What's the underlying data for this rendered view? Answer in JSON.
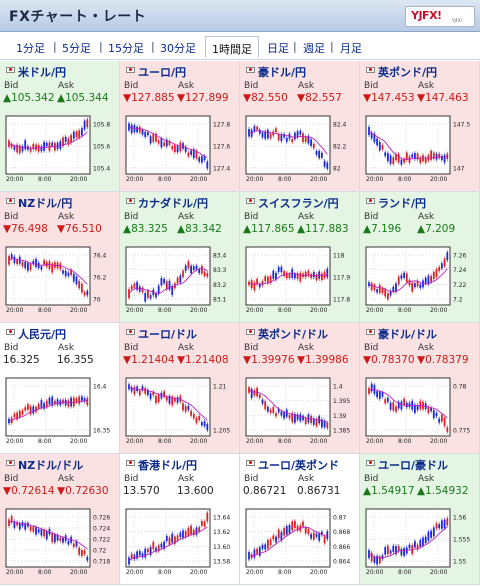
{
  "app": {
    "title": "FXチャート・レート",
    "logo": "YJFX!",
    "logo_sub": "YJFX!"
  },
  "timeframes": [
    {
      "label": "1分足",
      "active": false
    },
    {
      "label": "5分足",
      "active": false
    },
    {
      "label": "15分足",
      "active": false
    },
    {
      "label": "30分足",
      "active": false
    },
    {
      "label": "1時間足",
      "active": true
    },
    {
      "label": "日足",
      "active": false
    },
    {
      "label": "週足",
      "active": false
    },
    {
      "label": "月足",
      "active": false
    }
  ],
  "labels": {
    "bid": "Bid",
    "ask": "Ask"
  },
  "colors": {
    "up_bg": "#e4f5e4",
    "down_bg": "#fbe2e2",
    "up_text": "#1a7a1a",
    "down_text": "#d01818",
    "candle_up": "#e02020",
    "candle_down": "#1a2ad8",
    "ma_line": "#c020c0"
  },
  "pairs": [
    {
      "name": "米ドル/円",
      "dir": "up",
      "bid": "▲105.342",
      "ask": "▲105.344",
      "yticks": [
        "105.8",
        "105.6",
        "105.4"
      ],
      "xticks": [
        "20:00",
        "8:00",
        "20:00"
      ],
      "icon": "flag-icon"
    },
    {
      "name": "ユーロ/円",
      "dir": "dn",
      "bid": "▼127.885",
      "ask": "▼127.899",
      "yticks": [
        "127.8",
        "127.6",
        "127.4"
      ],
      "xticks": [
        "20:00",
        "8:00",
        "20:00"
      ],
      "icon": "flag-icon"
    },
    {
      "name": "豪ドル/円",
      "dir": "dn",
      "bid": "▼82.550",
      "ask": "▼82.557",
      "yticks": [
        "82.4",
        "82.2",
        "82"
      ],
      "xticks": [
        "20:00",
        "8:00",
        "20:00"
      ],
      "icon": "flag-icon"
    },
    {
      "name": "英ポンド/円",
      "dir": "dn",
      "bid": "▼147.453",
      "ask": "▼147.463",
      "yticks": [
        "147.5",
        "147"
      ],
      "xticks": [
        "20:00",
        "8:00",
        "20:00"
      ],
      "icon": "flag-icon"
    },
    {
      "name": "NZドル/円",
      "dir": "dn",
      "bid": "▼76.498",
      "ask": "▼76.510",
      "yticks": [
        "76.4",
        "76.2",
        "76"
      ],
      "xticks": [
        "20:00",
        "8:00",
        "20:00"
      ],
      "icon": "flag-icon"
    },
    {
      "name": "カナダドル/円",
      "dir": "up",
      "bid": "▲83.325",
      "ask": "▲83.342",
      "yticks": [
        "83.4",
        "83.3",
        "83.2",
        "83.1"
      ],
      "xticks": [
        "20:00",
        "8:00",
        "20:00"
      ],
      "icon": "flag-icon"
    },
    {
      "name": "スイスフラン/円",
      "dir": "up",
      "bid": "▲117.865",
      "ask": "▲117.883",
      "yticks": [
        "118",
        "117.9",
        "117.8"
      ],
      "xticks": [
        "20:00",
        "8:00",
        "20:00"
      ],
      "icon": "flag-icon"
    },
    {
      "name": "ランド/円",
      "dir": "up",
      "bid": "▲7.196",
      "ask": "▲7.209",
      "yticks": [
        "7.26",
        "7.24",
        "7.22",
        "7.2"
      ],
      "xticks": [
        "20:00",
        "8:00",
        "20:00"
      ],
      "icon": "flag-icon"
    },
    {
      "name": "人民元/円",
      "dir": "fl",
      "bid": "16.325",
      "ask": "16.355",
      "yticks": [
        "16.4",
        "16.35"
      ],
      "xticks": [
        "20:00",
        "8:00",
        "20:00"
      ],
      "icon": "flag-icon"
    },
    {
      "name": "ユーロ/ドル",
      "dir": "dn",
      "bid": "▼1.21404",
      "ask": "▼1.21408",
      "yticks": [
        "1.21",
        "1.205"
      ],
      "xticks": [
        "20:00",
        "8:00",
        "20:00"
      ],
      "icon": "flag-icon"
    },
    {
      "name": "英ポンド/ドル",
      "dir": "dn",
      "bid": "▼1.39976",
      "ask": "▼1.39986",
      "yticks": [
        "1.4",
        "1.395",
        "1.39",
        "1.385"
      ],
      "xticks": [
        "20:00",
        "8:00",
        "20:00"
      ],
      "icon": "flag-icon"
    },
    {
      "name": "豪ドル/ドル",
      "dir": "dn",
      "bid": "▼0.78370",
      "ask": "▼0.78379",
      "yticks": [
        "0.78",
        "0.775"
      ],
      "xticks": [
        "20:00",
        "8:00",
        "20:00"
      ],
      "icon": "flag-icon"
    },
    {
      "name": "NZドル/ドル",
      "dir": "dn",
      "bid": "▼0.72614",
      "ask": "▼0.72630",
      "yticks": [
        "0.726",
        "0.724",
        "0.722",
        "0.72",
        "0.718"
      ],
      "xticks": [
        "20:00",
        "8:00",
        "20:00"
      ],
      "icon": "flag-icon"
    },
    {
      "name": "香港ドル/円",
      "dir": "fl",
      "bid": "13.570",
      "ask": "13.600",
      "yticks": [
        "13.64",
        "13.62",
        "13.60",
        "13.58"
      ],
      "xticks": [
        "20:00",
        "8:00",
        "20:00"
      ],
      "icon": "flag-icon"
    },
    {
      "name": "ユーロ/英ポンド",
      "dir": "fl",
      "bid": "0.86721",
      "ask": "0.86731",
      "yticks": [
        "0.87",
        "0.868",
        "0.866",
        "0.864"
      ],
      "xticks": [
        "20:00",
        "8:00",
        "20:00"
      ],
      "icon": "flag-icon"
    },
    {
      "name": "ユーロ/豪ドル",
      "dir": "up",
      "bid": "▲1.54917",
      "ask": "▲1.54932",
      "yticks": [
        "1.56",
        "1.555",
        "1.55"
      ],
      "xticks": [
        "20:00",
        "8:00",
        "20:00"
      ],
      "icon": "flag-icon"
    }
  ]
}
